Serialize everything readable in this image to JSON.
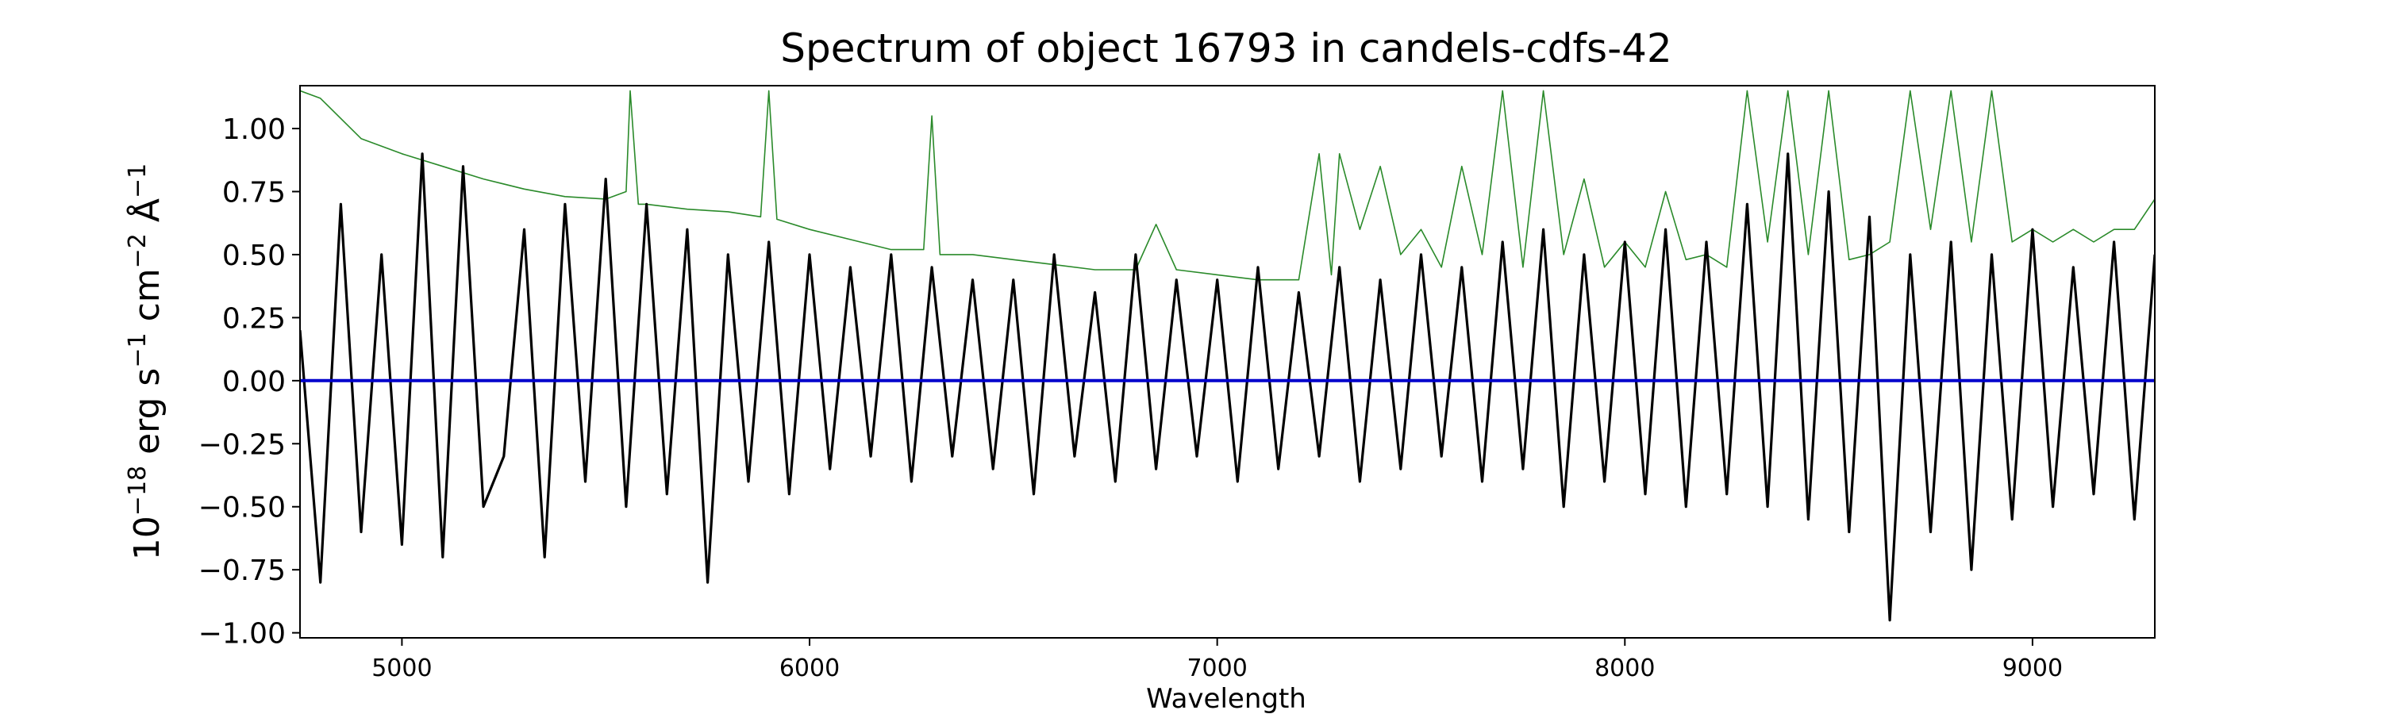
{
  "chart_data": {
    "type": "line",
    "title": "Spectrum of object 16793 in candels-cdfs-42",
    "xlabel": "Wavelength",
    "ylabel_parts": {
      "base": "10",
      "exp_scale": "−18",
      "u1": " erg s",
      "e1": "−1",
      "u2": " cm",
      "e2": "−2",
      "u3": " Å",
      "e3": "−1"
    },
    "xlim": [
      4750,
      9300
    ],
    "ylim": [
      -1.02,
      1.17
    ],
    "xticks": [
      5000,
      6000,
      7000,
      8000,
      9000
    ],
    "xtick_labels": [
      "5000",
      "6000",
      "7000",
      "8000",
      "9000"
    ],
    "yticks": [
      1.0,
      0.75,
      0.5,
      0.25,
      0.0,
      -0.25,
      -0.5,
      -0.75,
      -1.0
    ],
    "ytick_labels": [
      "1.00",
      "0.75",
      "0.50",
      "0.25",
      "0.00",
      "−0.25",
      "−0.50",
      "−0.75",
      "−1.00"
    ],
    "grid": false,
    "series": [
      {
        "role": "flux",
        "color": "#000000",
        "x": [
          4750,
          4800,
          4850,
          4900,
          4950,
          5000,
          5050,
          5100,
          5150,
          5200,
          5250,
          5300,
          5350,
          5400,
          5450,
          5500,
          5550,
          5600,
          5650,
          5700,
          5750,
          5800,
          5850,
          5900,
          5950,
          6000,
          6050,
          6100,
          6150,
          6200,
          6250,
          6300,
          6350,
          6400,
          6450,
          6500,
          6550,
          6600,
          6650,
          6700,
          6750,
          6800,
          6850,
          6900,
          6950,
          7000,
          7050,
          7100,
          7150,
          7200,
          7250,
          7300,
          7350,
          7400,
          7450,
          7500,
          7550,
          7600,
          7650,
          7700,
          7750,
          7800,
          7850,
          7900,
          7950,
          8000,
          8050,
          8100,
          8150,
          8200,
          8250,
          8300,
          8350,
          8400,
          8450,
          8500,
          8550,
          8600,
          8650,
          8700,
          8750,
          8800,
          8850,
          8900,
          8950,
          9000,
          9050,
          9100,
          9150,
          9200,
          9250,
          9300
        ],
        "y": [
          0.2,
          -0.8,
          0.7,
          -0.6,
          0.5,
          -0.65,
          0.9,
          -0.7,
          0.85,
          -0.5,
          -0.3,
          0.6,
          -0.7,
          0.7,
          -0.4,
          0.8,
          -0.5,
          0.7,
          -0.45,
          0.6,
          -0.8,
          0.5,
          -0.4,
          0.55,
          -0.45,
          0.5,
          -0.35,
          0.45,
          -0.3,
          0.5,
          -0.4,
          0.45,
          -0.3,
          0.4,
          -0.35,
          0.4,
          -0.45,
          0.5,
          -0.3,
          0.35,
          -0.4,
          0.5,
          -0.35,
          0.4,
          -0.3,
          0.4,
          -0.4,
          0.45,
          -0.35,
          0.35,
          -0.3,
          0.45,
          -0.4,
          0.4,
          -0.35,
          0.5,
          -0.3,
          0.45,
          -0.4,
          0.55,
          -0.35,
          0.6,
          -0.5,
          0.5,
          -0.4,
          0.55,
          -0.45,
          0.6,
          -0.5,
          0.55,
          -0.45,
          0.7,
          -0.5,
          0.9,
          -0.55,
          0.75,
          -0.6,
          0.65,
          -0.95,
          0.5,
          -0.6,
          0.55,
          -0.75,
          0.5,
          -0.55,
          0.6,
          -0.5,
          0.45,
          -0.45,
          0.55,
          -0.55,
          0.5
        ]
      },
      {
        "role": "error",
        "color": "#2a8a2a",
        "x": [
          4750,
          4800,
          4900,
          5000,
          5100,
          5200,
          5300,
          5400,
          5500,
          5550,
          5560,
          5580,
          5600,
          5700,
          5800,
          5880,
          5900,
          5920,
          6000,
          6100,
          6200,
          6280,
          6300,
          6320,
          6400,
          6500,
          6600,
          6700,
          6800,
          6850,
          6900,
          7000,
          7100,
          7200,
          7250,
          7280,
          7300,
          7350,
          7400,
          7450,
          7500,
          7550,
          7600,
          7650,
          7700,
          7750,
          7800,
          7850,
          7900,
          7950,
          8000,
          8050,
          8100,
          8150,
          8200,
          8250,
          8300,
          8350,
          8400,
          8450,
          8500,
          8550,
          8600,
          8650,
          8700,
          8750,
          8800,
          8850,
          8900,
          8950,
          9000,
          9050,
          9100,
          9150,
          9200,
          9250,
          9300
        ],
        "y": [
          1.15,
          1.12,
          0.96,
          0.9,
          0.85,
          0.8,
          0.76,
          0.73,
          0.72,
          0.75,
          1.15,
          0.7,
          0.7,
          0.68,
          0.67,
          0.65,
          1.15,
          0.64,
          0.6,
          0.56,
          0.52,
          0.52,
          1.05,
          0.5,
          0.5,
          0.48,
          0.46,
          0.44,
          0.44,
          0.62,
          0.44,
          0.42,
          0.4,
          0.4,
          0.9,
          0.42,
          0.9,
          0.6,
          0.85,
          0.5,
          0.6,
          0.45,
          0.85,
          0.5,
          1.15,
          0.45,
          1.15,
          0.5,
          0.8,
          0.45,
          0.55,
          0.45,
          0.75,
          0.48,
          0.5,
          0.45,
          1.15,
          0.55,
          1.15,
          0.5,
          1.15,
          0.48,
          0.5,
          0.55,
          1.15,
          0.6,
          1.15,
          0.55,
          1.15,
          0.55,
          0.6,
          0.55,
          0.6,
          0.55,
          0.6,
          0.6,
          0.72
        ]
      },
      {
        "role": "zero",
        "color": "#0000cc",
        "x": [
          4750,
          9300
        ],
        "y": [
          0.0,
          0.0
        ]
      }
    ]
  }
}
